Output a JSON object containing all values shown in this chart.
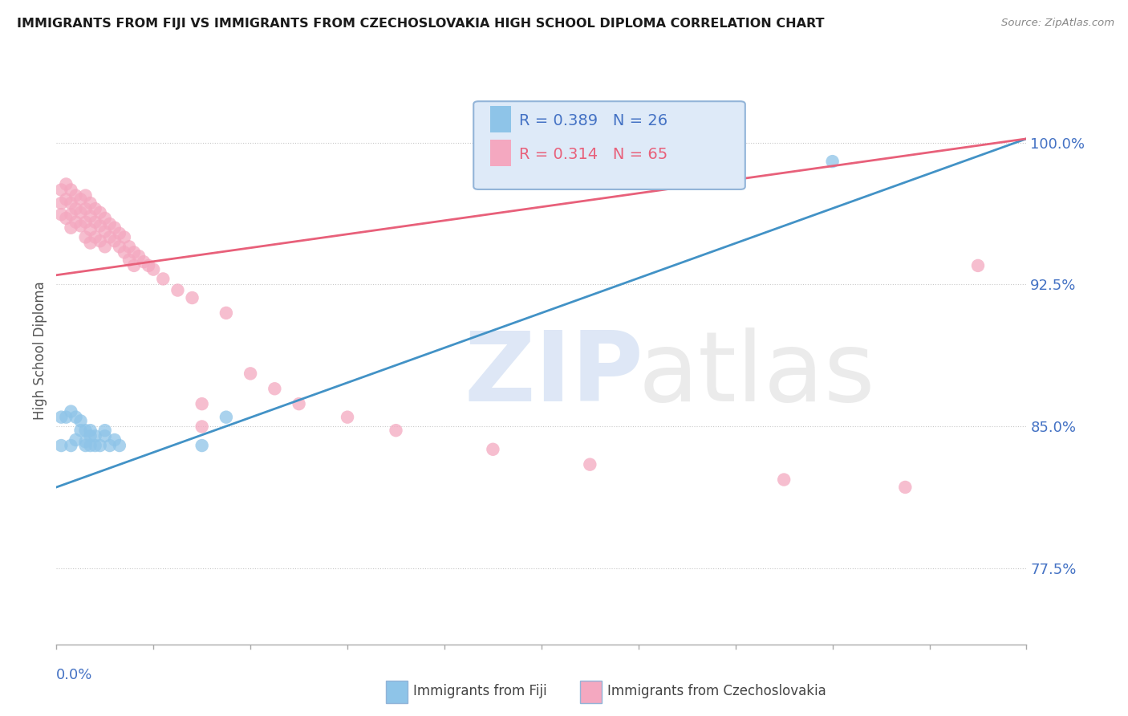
{
  "title": "IMMIGRANTS FROM FIJI VS IMMIGRANTS FROM CZECHOSLOVAKIA HIGH SCHOOL DIPLOMA CORRELATION CHART",
  "source": "Source: ZipAtlas.com",
  "ylabel": "High School Diploma",
  "fiji_R": 0.389,
  "fiji_N": 26,
  "czech_R": 0.314,
  "czech_N": 65,
  "fiji_color": "#8ec4e8",
  "czech_color": "#f4a8c0",
  "fiji_line_color": "#4292c6",
  "czech_line_color": "#e8607a",
  "axis_label_color": "#4472c4",
  "ytick_labels": [
    "77.5%",
    "85.0%",
    "92.5%",
    "100.0%"
  ],
  "ytick_values": [
    0.775,
    0.85,
    0.925,
    1.0
  ],
  "xmin": 0.0,
  "xmax": 0.2,
  "ymin": 0.735,
  "ymax": 1.045,
  "fiji_line_x0": 0.0,
  "fiji_line_y0": 0.818,
  "fiji_line_x1": 0.2,
  "fiji_line_y1": 1.002,
  "czech_line_x0": 0.0,
  "czech_line_y0": 0.93,
  "czech_line_x1": 0.2,
  "czech_line_y1": 1.002,
  "fiji_points_x": [
    0.001,
    0.002,
    0.003,
    0.004,
    0.005,
    0.005,
    0.006,
    0.006,
    0.007,
    0.007,
    0.008,
    0.008,
    0.009,
    0.01,
    0.01,
    0.011,
    0.012,
    0.013,
    0.001,
    0.003,
    0.004,
    0.006,
    0.007,
    0.03,
    0.035,
    0.16
  ],
  "fiji_points_y": [
    0.855,
    0.855,
    0.858,
    0.855,
    0.848,
    0.853,
    0.848,
    0.842,
    0.845,
    0.84,
    0.84,
    0.845,
    0.84,
    0.845,
    0.848,
    0.84,
    0.843,
    0.84,
    0.84,
    0.84,
    0.843,
    0.84,
    0.848,
    0.84,
    0.855,
    0.99
  ],
  "czech_points_x": [
    0.001,
    0.001,
    0.001,
    0.002,
    0.002,
    0.002,
    0.003,
    0.003,
    0.003,
    0.003,
    0.004,
    0.004,
    0.004,
    0.005,
    0.005,
    0.005,
    0.006,
    0.006,
    0.006,
    0.006,
    0.007,
    0.007,
    0.007,
    0.007,
    0.008,
    0.008,
    0.008,
    0.009,
    0.009,
    0.009,
    0.01,
    0.01,
    0.01,
    0.011,
    0.011,
    0.012,
    0.012,
    0.013,
    0.013,
    0.014,
    0.014,
    0.015,
    0.015,
    0.016,
    0.016,
    0.017,
    0.018,
    0.019,
    0.02,
    0.022,
    0.025,
    0.028,
    0.03,
    0.035,
    0.04,
    0.045,
    0.05,
    0.06,
    0.07,
    0.09,
    0.11,
    0.15,
    0.175,
    0.19,
    0.03
  ],
  "czech_points_y": [
    0.975,
    0.968,
    0.962,
    0.978,
    0.97,
    0.96,
    0.975,
    0.968,
    0.962,
    0.955,
    0.972,
    0.965,
    0.958,
    0.97,
    0.963,
    0.956,
    0.972,
    0.965,
    0.958,
    0.95,
    0.968,
    0.961,
    0.954,
    0.947,
    0.965,
    0.958,
    0.95,
    0.963,
    0.956,
    0.948,
    0.96,
    0.953,
    0.945,
    0.957,
    0.95,
    0.955,
    0.948,
    0.952,
    0.945,
    0.95,
    0.942,
    0.945,
    0.938,
    0.942,
    0.935,
    0.94,
    0.937,
    0.935,
    0.933,
    0.928,
    0.922,
    0.918,
    0.862,
    0.91,
    0.878,
    0.87,
    0.862,
    0.855,
    0.848,
    0.838,
    0.83,
    0.822,
    0.818,
    0.935,
    0.85
  ],
  "legend_box_color": "#deeaf8",
  "legend_border_color": "#92b4d8"
}
